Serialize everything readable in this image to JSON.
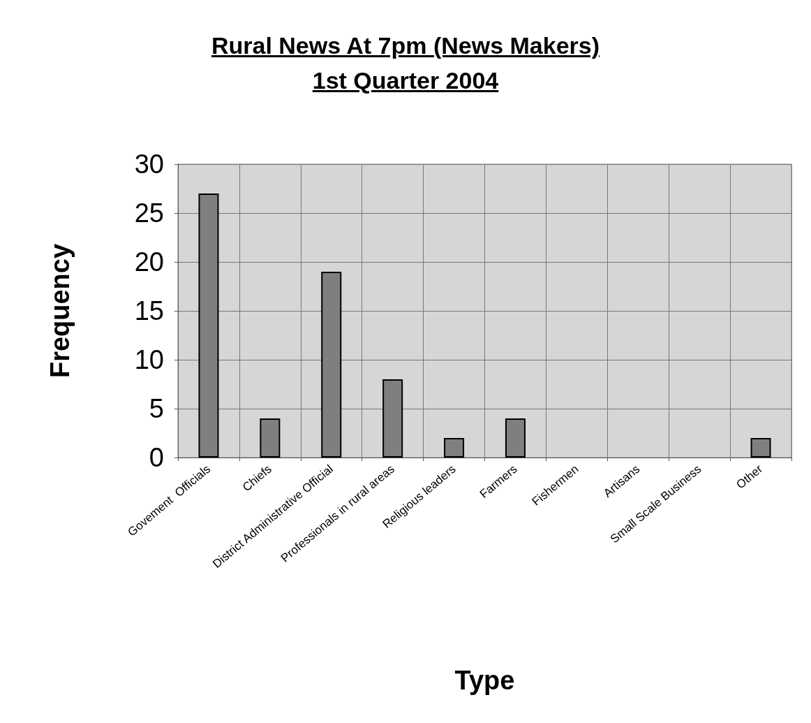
{
  "chart_data": {
    "type": "bar",
    "title": "Rural News At 7pm (News Makers)",
    "subtitle": "1st Quarter 2004",
    "xlabel": "Type",
    "ylabel": "Frequency",
    "categories": [
      "Govement  Officials",
      "Chiefs",
      "District Administrative Official",
      "Professionals in rural areas",
      "Religious leaders",
      "Farmers",
      "Fishermen",
      "Artisans",
      "Small Scale Business",
      "Other"
    ],
    "values": [
      27,
      4,
      19,
      8,
      2,
      4,
      0,
      0,
      0,
      2
    ],
    "color": "#7f7f7f",
    "ylim": [
      0,
      30
    ],
    "yticks": [
      0,
      5,
      10,
      15,
      20,
      25,
      30
    ],
    "grid": true
  }
}
